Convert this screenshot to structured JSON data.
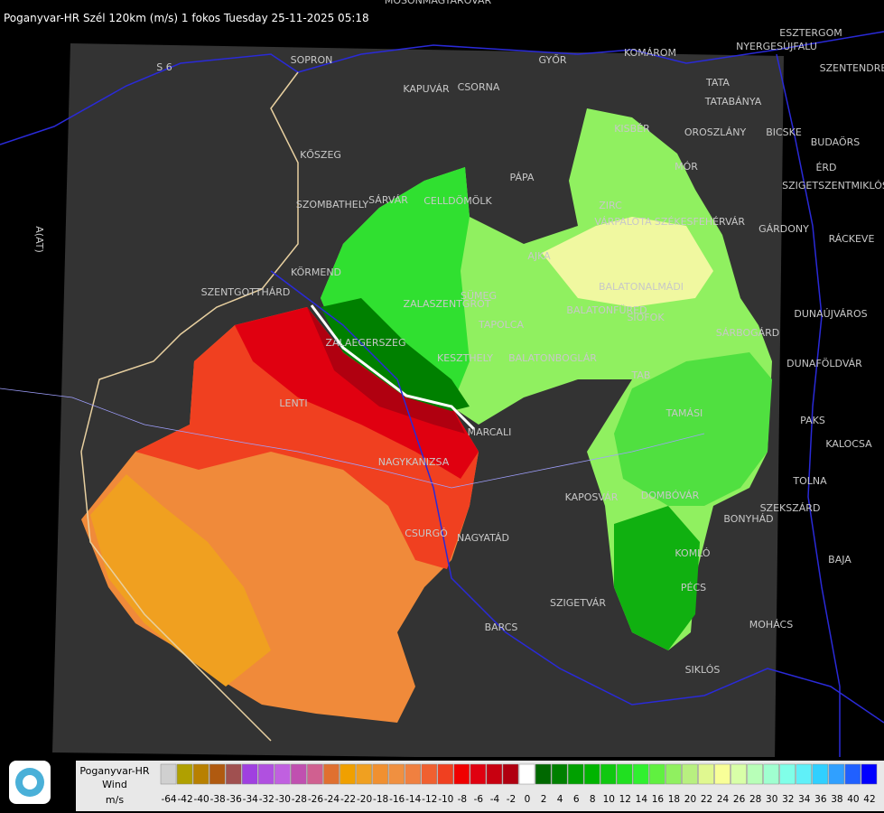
{
  "header": {
    "title": "Poganyvar-HR Szél 120km (m/s) 1 fokos Tuesday 25-11-2025 05:18"
  },
  "map": {
    "places": [
      "MOSONMAGYARÓVÁR",
      "SOPRON",
      "S 6",
      "GYŐR",
      "KOMÁROM",
      "ESZTERGOM",
      "NYERGESÚJFALU",
      "SZENTENDRE",
      "TATA",
      "TATABÁNYA",
      "KAPUVÁR",
      "CSORNA",
      "KISBÉR",
      "OROSZLÁNY",
      "BICSKE",
      "BUDAÖRS",
      "ÉRD",
      "KŐSZEG",
      "PÁPA",
      "MÓR",
      "SZIGETSZENTMIKLÓS",
      "SZOMBATHELY",
      "SÁRVÁR",
      "CELLDÖMÖLK",
      "ZIRC",
      "VÁRPALOTA",
      "SZÉKESFEHÉRVÁR",
      "GÁRDONY",
      "RÁCKEVE",
      "AJKA",
      "KÖRMEND",
      "SZENTGOTTHÁRD",
      "SÜMEG",
      "BALATONALMÁDI",
      "ZALASZENTGRÓT",
      "TAPOLCA",
      "BALATONFÜRED",
      "SIÓFOK",
      "DUNAÚJVÁROS",
      "SÁRBOGÁRD",
      "ZALAEGERSZEG",
      "KESZTHELY",
      "BALATONBOGLÁR",
      "DUNAFÖLDVÁR",
      "TAB",
      "LENTI",
      "TAMÁSI",
      "PAKS",
      "MARCALI",
      "KALOCSA",
      "NAGYKANIZSA",
      "TOLNA",
      "KAPOSVÁR",
      "DOMBÓVÁR",
      "SZEKSZÁRD",
      "CSURGÓ",
      "NAGYATÁD",
      "BONYHÁD",
      "KOMLÓ",
      "BAJA",
      "PÉCS",
      "SZIGETVÁR",
      "MOHÁCS",
      "BARCS",
      "SIKLÓS",
      "A(AT)"
    ]
  },
  "legend": {
    "source": "Poganyvar-HR",
    "quantity": "Wind",
    "unit": "m/s",
    "ticks": [
      -64,
      -42,
      -40,
      -38,
      -36,
      -34,
      -32,
      -30,
      -28,
      -26,
      -24,
      -22,
      -20,
      -18,
      -16,
      -14,
      -12,
      -10,
      -8,
      -6,
      -4,
      -2,
      0,
      2,
      4,
      6,
      8,
      10,
      12,
      14,
      16,
      18,
      20,
      22,
      24,
      26,
      28,
      30,
      32,
      34,
      36,
      38,
      40,
      42
    ],
    "colors": [
      "#d0d0d0",
      "#b0a000",
      "#b88000",
      "#b05a10",
      "#a05050",
      "#a040e0",
      "#b050e0",
      "#c060e0",
      "#c050b0",
      "#d06090",
      "#e07030",
      "#f0a000",
      "#f0a020",
      "#f09030",
      "#f09040",
      "#f08040",
      "#f06030",
      "#f04020",
      "#f00000",
      "#e00010",
      "#c80010",
      "#b00010",
      "#ffffff",
      "#006800",
      "#008000",
      "#00a000",
      "#00b400",
      "#10c810",
      "#20e020",
      "#30f030",
      "#60f040",
      "#90f060",
      "#b8f080",
      "#e0f890",
      "#f8ff98",
      "#d8ffa8",
      "#b8ffb8",
      "#a0ffd0",
      "#80ffe8",
      "#60f0f8",
      "#30d0ff",
      "#30a0ff",
      "#2060ff",
      "#0000ff"
    ]
  }
}
